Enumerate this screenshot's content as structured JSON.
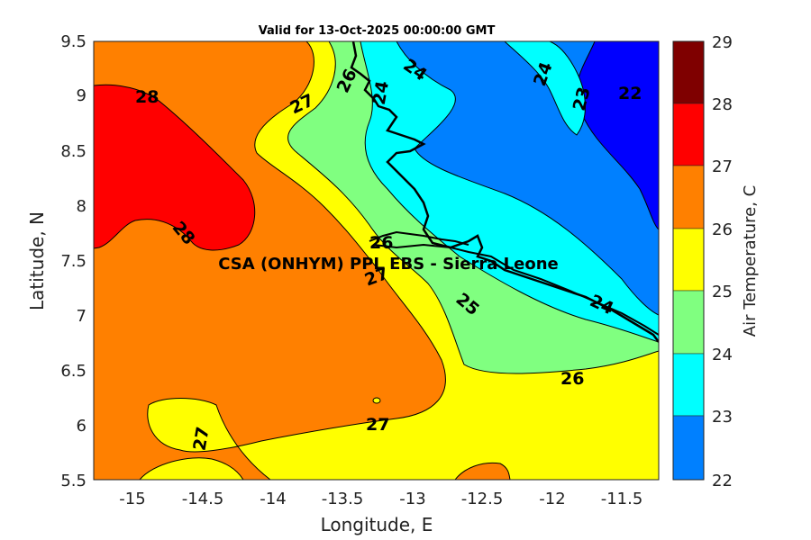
{
  "title": "Valid for 13-Oct-2025 00:00:00 GMT",
  "annotation": "CSA (ONHYM) PPL EBS  - Sierra Leone",
  "x_axis": {
    "label": "Longitude, E",
    "ticks": [
      "-15",
      "-14.5",
      "-14",
      "-13.5",
      "-13",
      "-12.5",
      "-12",
      "-11.5"
    ]
  },
  "y_axis": {
    "label": "Latitude, N",
    "ticks": [
      "9.5",
      "9",
      "8.5",
      "8",
      "7.5",
      "7",
      "6.5",
      "6",
      "5.5"
    ]
  },
  "colorbar": {
    "label": "Air Temperature, C",
    "ticks": [
      "29",
      "28",
      "27",
      "26",
      "25",
      "24",
      "23",
      "22"
    ],
    "colors": [
      "#7f0000",
      "#ff0000",
      "#ff8000",
      "#ffff00",
      "#80ff80",
      "#00ffff",
      "#0080ff",
      "#0000ff"
    ]
  },
  "contour_labels": {
    "l1": "28",
    "l2": "28",
    "l3": "27",
    "l4": "26",
    "l5": "24",
    "l6": "24",
    "l7": "23",
    "l8": "22",
    "l9": "26",
    "l10": "27",
    "l11": "25",
    "l12": "24",
    "l13": "26",
    "l14": "27",
    "l15": "27",
    "l16": "24"
  },
  "chart_data": {
    "type": "heatmap",
    "title": "Valid for 13-Oct-2025 00:00:00 GMT",
    "xlabel": "Longitude, E",
    "ylabel": "Latitude, N",
    "xlim": [
      -15.28,
      -11.25
    ],
    "ylim": [
      5.5,
      9.5
    ],
    "colorbar_range": [
      22,
      29
    ],
    "colorbar_label": "Air Temperature, C",
    "contour_levels": [
      22,
      23,
      24,
      25,
      26,
      27,
      28
    ],
    "annotation": "CSA (ONHYM) PPL EBS  - Sierra Leone"
  }
}
